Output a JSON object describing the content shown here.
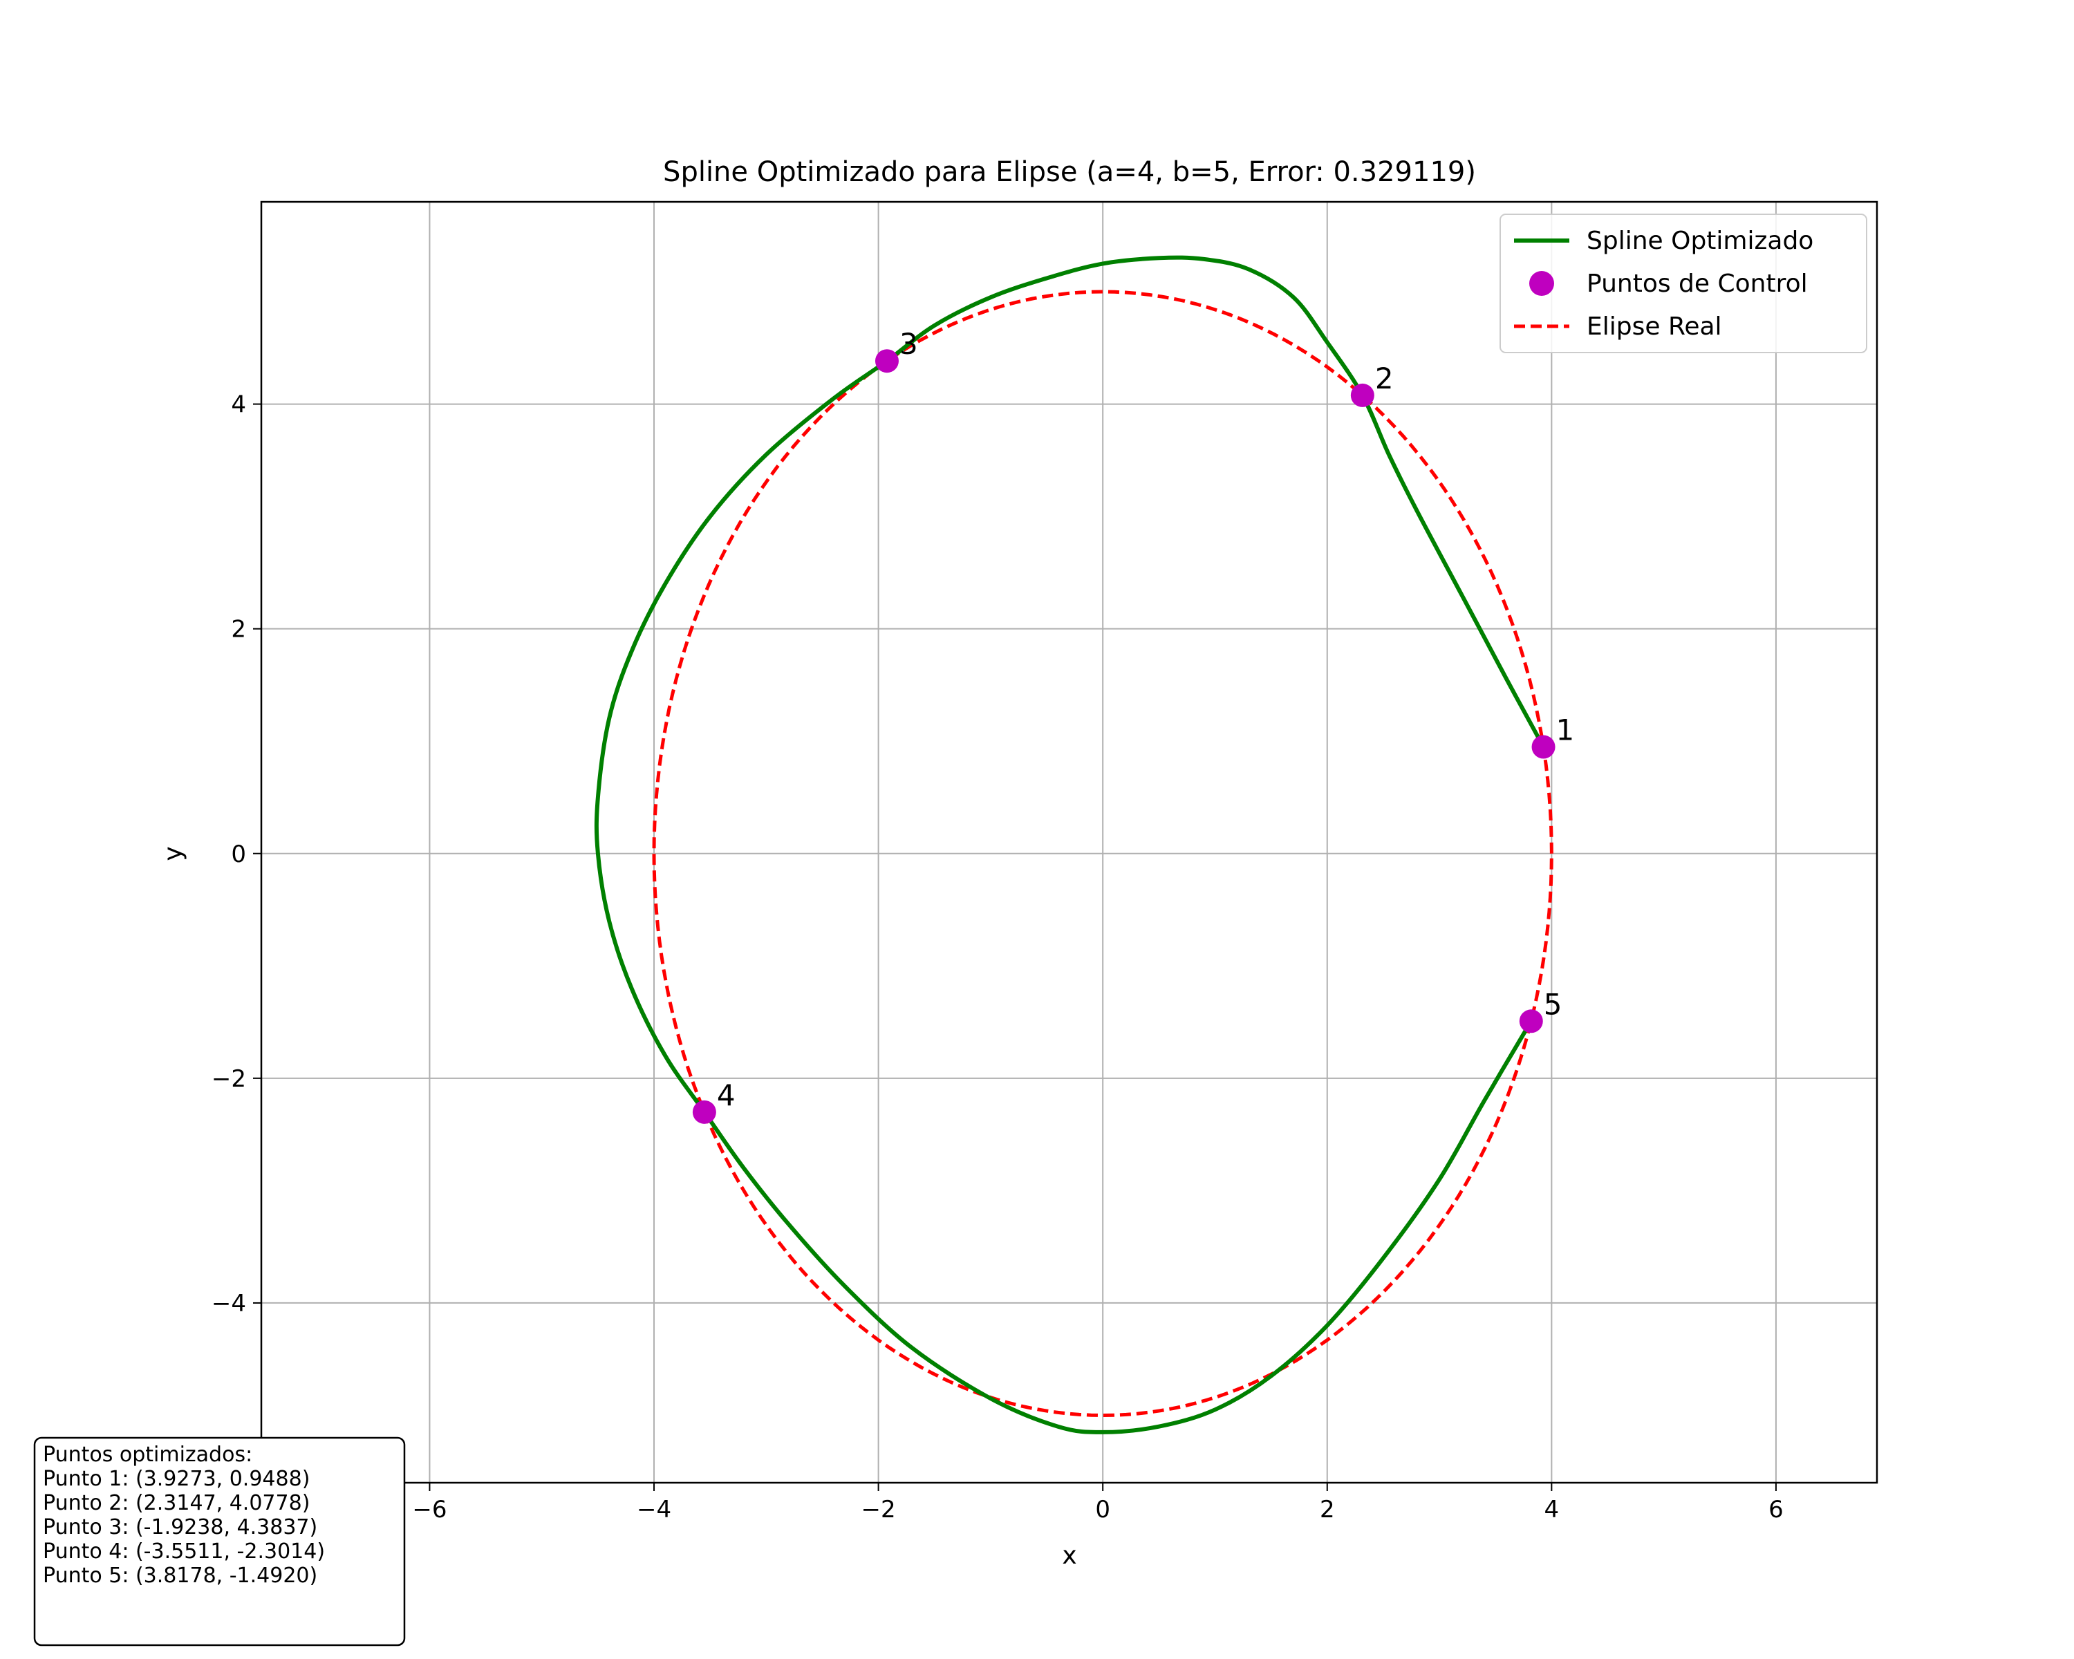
{
  "chart_data": {
    "type": "line",
    "title": "Spline Optimizado para Elipse (a=4, b=5, Error: 0.329119)",
    "xlabel": "x",
    "ylabel": "y",
    "xlim": [
      -7.5,
      6.9
    ],
    "ylim": [
      -5.6,
      5.8
    ],
    "x_ticks": [
      -6,
      -4,
      -2,
      0,
      2,
      4,
      6
    ],
    "y_ticks": [
      -4,
      -2,
      0,
      2,
      4
    ],
    "x_tick_labels": [
      "−6",
      "−4",
      "−2",
      "0",
      "2",
      "4",
      "6"
    ],
    "y_tick_labels": [
      "−4",
      "−2",
      "0",
      "2",
      "4"
    ],
    "grid": true,
    "legend_position": "top-right",
    "colors": {
      "spline": "#008000",
      "points": "#bf00bf",
      "ellipse": "#ff0000"
    },
    "legend": [
      {
        "label": "Spline Optimizado",
        "style": "line"
      },
      {
        "label": "Puntos de Control",
        "style": "marker"
      },
      {
        "label": "Elipse Real",
        "style": "dashed"
      }
    ],
    "ellipse": {
      "a": 4,
      "b": 5
    },
    "control_points": [
      {
        "label": "1",
        "x": 3.9273,
        "y": 0.9488
      },
      {
        "label": "2",
        "x": 2.3147,
        "y": 4.0778
      },
      {
        "label": "3",
        "x": -1.9238,
        "y": 4.3837
      },
      {
        "label": "4",
        "x": -3.5511,
        "y": -2.3014
      },
      {
        "label": "5",
        "x": 3.8178,
        "y": -1.492
      }
    ],
    "spline": {
      "x": [
        3.9273,
        3.6,
        3.2,
        2.8,
        2.55,
        2.3147,
        2.0,
        1.7,
        1.3,
        0.9,
        0.5,
        0.0,
        -0.5,
        -1.0,
        -1.5,
        -1.9238,
        -2.4,
        -3.0,
        -3.5,
        -3.9,
        -4.2,
        -4.4,
        -4.5,
        -4.5,
        -4.4,
        -4.2,
        -3.9,
        -3.5511,
        -3.2,
        -2.8,
        -2.3,
        -1.7,
        -1.0,
        -0.4,
        0.0,
        0.5,
        1.0,
        1.5,
        2.0,
        2.5,
        3.0,
        3.4,
        3.8178
      ],
      "y": [
        0.9488,
        1.55,
        2.3,
        3.05,
        3.55,
        4.0778,
        4.55,
        4.95,
        5.2,
        5.29,
        5.3,
        5.25,
        5.12,
        4.95,
        4.7,
        4.3837,
        4.05,
        3.55,
        3.0,
        2.4,
        1.8,
        1.2,
        0.5,
        0.0,
        -0.6,
        -1.2,
        -1.8,
        -2.3014,
        -2.8,
        -3.3,
        -3.85,
        -4.4,
        -4.85,
        -5.1,
        -5.15,
        -5.1,
        -4.95,
        -4.65,
        -4.2,
        -3.6,
        -2.9,
        -2.2,
        -1.492
      ]
    }
  },
  "info_box": {
    "title": "Puntos optimizados:",
    "lines": [
      "Punto 1: (3.9273, 0.9488)",
      "Punto 2: (2.3147, 4.0778)",
      "Punto 3: (-1.9238, 4.3837)",
      "Punto 4: (-3.5511, -2.3014)",
      "Punto 5: (3.8178, -1.4920)"
    ]
  }
}
